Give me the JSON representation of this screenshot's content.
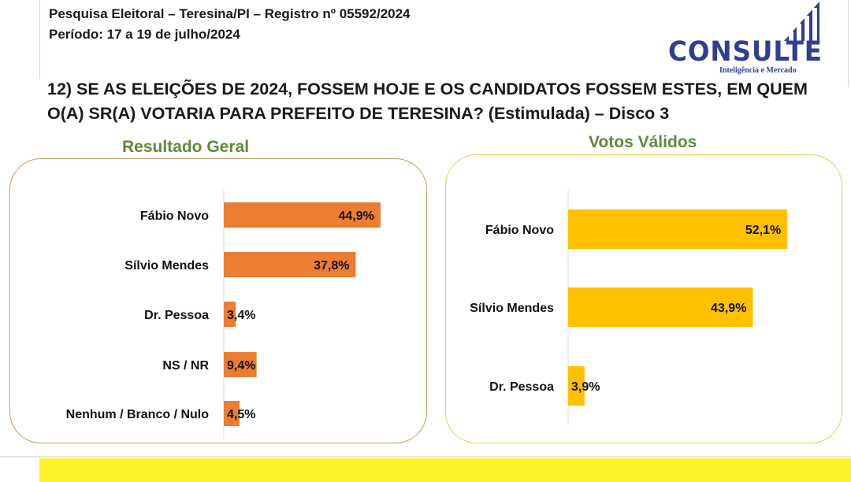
{
  "header": {
    "line1": "Pesquisa Eleitoral – Teresina/PI  – Registro nº 05592/2024",
    "line2": "Período: 17 a 19 de julho/2024"
  },
  "logo": {
    "name": "CONSULTE",
    "tagline": "Inteligência e Mercado",
    "color": "#2f3f8f"
  },
  "question": "12) SE AS ELEIÇÕES DE 2024, FOSSEM HOJE E OS CANDIDATOS FOSSEM ESTES, EM QUEM O(A) SR(A) VOTARIA PARA PREFEITO DE TERESINA? (Estimulada) – Disco 3",
  "chart_data": [
    {
      "type": "bar",
      "orientation": "horizontal",
      "title": "Resultado Geral",
      "categories": [
        "Fábio Novo",
        "Sílvio Mendes",
        "Dr. Pessoa",
        "NS / NR",
        "Nenhum / Branco / Nulo"
      ],
      "values": [
        44.9,
        37.8,
        3.4,
        9.4,
        4.5
      ],
      "labels": [
        "44,9%",
        "37,8%",
        "3,4%",
        "9,4%",
        "4,5%"
      ],
      "color": "#ed7d31",
      "unit": "%"
    },
    {
      "type": "bar",
      "orientation": "horizontal",
      "title": "Votos Válidos",
      "categories": [
        "Fábio Novo",
        "Sílvio Mendes",
        "Dr. Pessoa"
      ],
      "values": [
        52.1,
        43.9,
        3.9
      ],
      "labels": [
        "52,1%",
        "43,9%",
        "3,9%"
      ],
      "color": "#ffc000",
      "unit": "%"
    }
  ]
}
